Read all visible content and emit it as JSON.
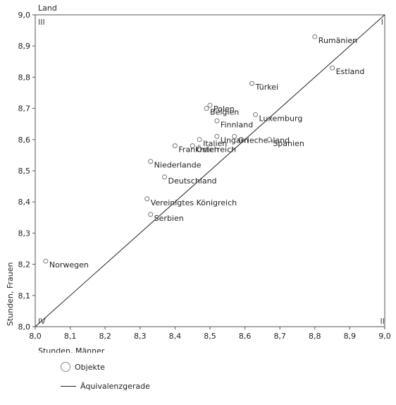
{
  "chart_data": {
    "type": "scatter",
    "title": "",
    "xlabel": "Stunden, Männer",
    "ylabel": "Stunden, Frauen",
    "top_axis_label": "Land",
    "xlim": [
      8.0,
      9.0
    ],
    "ylim": [
      8.0,
      9.0
    ],
    "x_ticks": [
      "8,0",
      "8,1",
      "8,2",
      "8,3",
      "8,4",
      "8,5",
      "8,6",
      "8,7",
      "8,8",
      "8,9",
      "9,0"
    ],
    "y_ticks": [
      "8,0",
      "8,1",
      "8,2",
      "8,3",
      "8,4",
      "8,5",
      "8,6",
      "8,7",
      "8,8",
      "8,9",
      "9,0"
    ],
    "quadrants": [
      "I",
      "II",
      "III",
      "IV"
    ],
    "grid": false,
    "legend_placement": "bottom-left",
    "legend": {
      "points": "Objekte",
      "line": "Äquivalenzgerade"
    },
    "points": [
      {
        "label": "Rumänien",
        "x": 8.8,
        "y": 8.93
      },
      {
        "label": "Estland",
        "x": 8.85,
        "y": 8.83
      },
      {
        "label": "Türkei",
        "x": 8.62,
        "y": 8.78
      },
      {
        "label": "Polen",
        "x": 8.5,
        "y": 8.71
      },
      {
        "label": "Belgien",
        "x": 8.49,
        "y": 8.7
      },
      {
        "label": "Luxemburg",
        "x": 8.63,
        "y": 8.68
      },
      {
        "label": "Finnland",
        "x": 8.52,
        "y": 8.66
      },
      {
        "label": "Ungarn",
        "x": 8.52,
        "y": 8.61
      },
      {
        "label": "Griechenland",
        "x": 8.57,
        "y": 8.61
      },
      {
        "label": "Spanien",
        "x": 8.67,
        "y": 8.6
      },
      {
        "label": "Italien",
        "x": 8.47,
        "y": 8.6
      },
      {
        "label": "Frankreich",
        "x": 8.4,
        "y": 8.58
      },
      {
        "label": "Österreich",
        "x": 8.45,
        "y": 8.58
      },
      {
        "label": "Niederlande",
        "x": 8.33,
        "y": 8.53
      },
      {
        "label": "Deutschland",
        "x": 8.37,
        "y": 8.48
      },
      {
        "label": "Vereinigtes Königreich",
        "x": 8.32,
        "y": 8.41
      },
      {
        "label": "Serbien",
        "x": 8.33,
        "y": 8.36
      },
      {
        "label": "Norwegen",
        "x": 8.03,
        "y": 8.21
      }
    ],
    "reference_line": {
      "from": [
        8.0,
        8.0
      ],
      "to": [
        9.0,
        9.0
      ]
    }
  }
}
